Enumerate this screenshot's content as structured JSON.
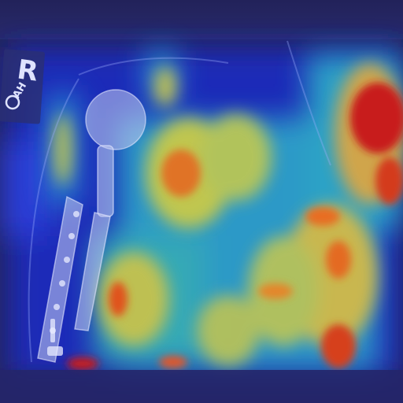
{
  "image": {
    "kind": "radiograph-with-attention-heatmap",
    "marker": {
      "letter": "R",
      "sub_text": "AH"
    },
    "colors": {
      "background": "#23235c",
      "heat_low": "#1f2fd6",
      "heat_mid": "#3fd0c0",
      "heat_high": "#f5c542",
      "heat_peak": "#c81a1a",
      "implant": "#c7cdf2"
    }
  }
}
